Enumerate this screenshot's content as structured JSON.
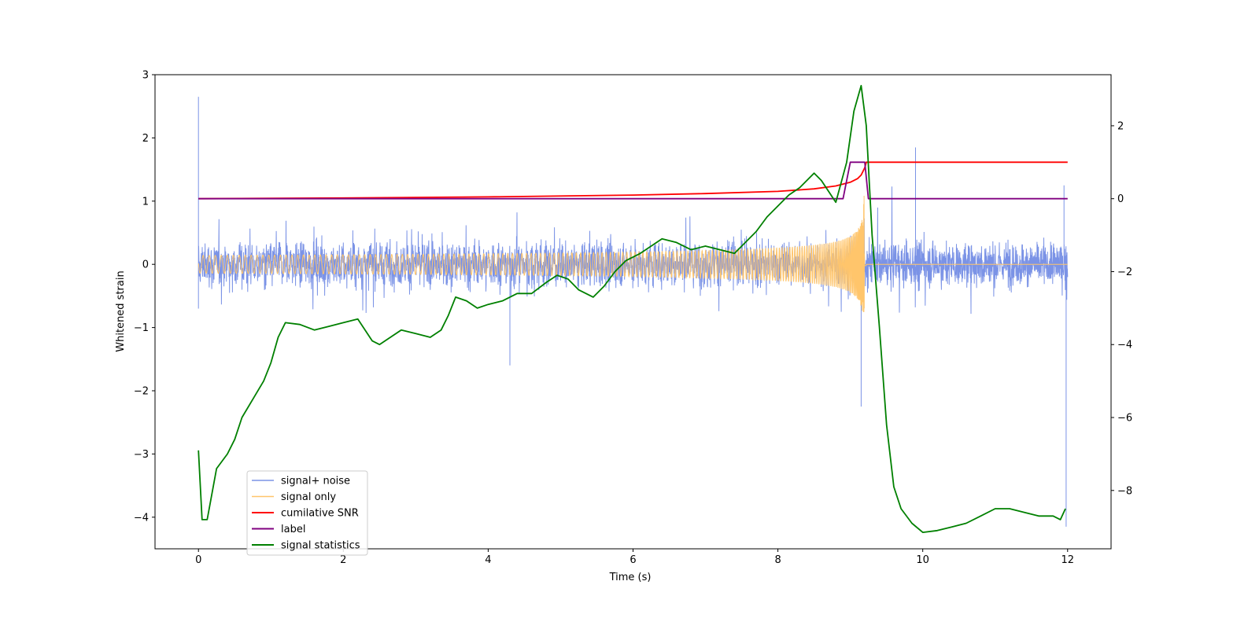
{
  "chart_data": {
    "type": "line",
    "title": "",
    "xlabel": "Time (s)",
    "ylabel": "Whitened strain",
    "ylabel_right": "",
    "xlim": [
      -0.6,
      12.6
    ],
    "ylim": [
      -4.5,
      3.0
    ],
    "ylim_right": [
      -9.6,
      3.4
    ],
    "xticks": [
      0,
      2,
      4,
      6,
      8,
      10,
      12
    ],
    "yticks": [
      -4,
      -3,
      -2,
      -1,
      0,
      1,
      2,
      3
    ],
    "yticks_right": [
      -8,
      -6,
      -4,
      -2,
      0,
      2
    ],
    "xtick_labels": [
      "0",
      "2",
      "4",
      "6",
      "8",
      "10",
      "12"
    ],
    "ytick_labels": [
      "−4",
      "−3",
      "−2",
      "−1",
      "0",
      "1",
      "2",
      "3"
    ],
    "ytick_labels_right": [
      "−8",
      "−6",
      "−4",
      "−2",
      "0",
      "2"
    ],
    "grid": false,
    "legend_position": "lower-left",
    "series": [
      {
        "name": "signal+ noise",
        "axis": "left",
        "color": "#7b93e6",
        "style": "noise",
        "t_range": [
          0,
          12
        ],
        "noise_band": [
          -1.0,
          1.0
        ],
        "spikes": [
          [
            0.0,
            2.65
          ],
          [
            0.0,
            -0.7
          ],
          [
            4.3,
            -1.6
          ],
          [
            9.15,
            -2.25
          ],
          [
            9.9,
            1.85
          ],
          [
            11.98,
            -4.15
          ],
          [
            11.95,
            1.25
          ]
        ]
      },
      {
        "name": "signal only",
        "axis": "left",
        "color": "#ffc56b",
        "style": "chirp",
        "t_range": [
          0,
          12
        ],
        "merger_time": 9.2,
        "peak_amplitude": 1.45
      },
      {
        "name": "cumilative SNR",
        "axis": "right",
        "color": "#ff0000",
        "x": [
          0,
          2,
          4,
          6,
          7,
          8,
          8.5,
          8.8,
          9.0,
          9.1,
          9.15,
          9.2,
          9.22,
          12
        ],
        "y": [
          0.0,
          0.02,
          0.05,
          0.1,
          0.14,
          0.2,
          0.27,
          0.35,
          0.45,
          0.55,
          0.65,
          0.85,
          1.0,
          1.0
        ]
      },
      {
        "name": "label",
        "axis": "right",
        "color": "#800080",
        "x": [
          0,
          8.9,
          9.0,
          9.2,
          9.25,
          12
        ],
        "y": [
          0,
          0,
          1.0,
          1.0,
          0,
          0
        ]
      },
      {
        "name": "signal statistics",
        "axis": "right",
        "color": "#008000",
        "x": [
          0,
          0.05,
          0.12,
          0.25,
          0.4,
          0.5,
          0.6,
          0.75,
          0.9,
          1.0,
          1.1,
          1.2,
          1.4,
          1.6,
          1.8,
          2.0,
          2.2,
          2.4,
          2.5,
          2.65,
          2.8,
          3.0,
          3.2,
          3.35,
          3.45,
          3.55,
          3.7,
          3.85,
          4.0,
          4.2,
          4.4,
          4.6,
          4.8,
          4.95,
          5.1,
          5.25,
          5.45,
          5.6,
          5.75,
          5.9,
          6.0,
          6.1,
          6.25,
          6.4,
          6.6,
          6.8,
          7.0,
          7.2,
          7.4,
          7.55,
          7.7,
          7.85,
          8.0,
          8.15,
          8.3,
          8.4,
          8.5,
          8.6,
          8.7,
          8.8,
          8.95,
          9.05,
          9.15,
          9.22,
          9.3,
          9.4,
          9.5,
          9.6,
          9.7,
          9.85,
          10.0,
          10.2,
          10.4,
          10.6,
          10.8,
          11.0,
          11.2,
          11.4,
          11.6,
          11.8,
          11.9,
          11.97
        ],
        "y": [
          -6.9,
          -8.8,
          -8.8,
          -7.4,
          -7.0,
          -6.6,
          -6.0,
          -5.5,
          -5.0,
          -4.5,
          -3.8,
          -3.4,
          -3.45,
          -3.6,
          -3.5,
          -3.4,
          -3.3,
          -3.9,
          -4.0,
          -3.8,
          -3.6,
          -3.7,
          -3.8,
          -3.6,
          -3.2,
          -2.7,
          -2.8,
          -3.0,
          -2.9,
          -2.8,
          -2.6,
          -2.6,
          -2.3,
          -2.1,
          -2.2,
          -2.5,
          -2.7,
          -2.4,
          -2.0,
          -1.7,
          -1.6,
          -1.5,
          -1.3,
          -1.1,
          -1.2,
          -1.4,
          -1.3,
          -1.4,
          -1.5,
          -1.2,
          -0.9,
          -0.5,
          -0.2,
          0.1,
          0.3,
          0.5,
          0.7,
          0.5,
          0.2,
          -0.1,
          1.0,
          2.4,
          3.1,
          2.0,
          -1.0,
          -3.5,
          -6.2,
          -7.9,
          -8.5,
          -8.9,
          -9.15,
          -9.1,
          -9.0,
          -8.9,
          -8.7,
          -8.5,
          -8.5,
          -8.6,
          -8.7,
          -8.7,
          -8.8,
          -8.5
        ]
      }
    ]
  }
}
